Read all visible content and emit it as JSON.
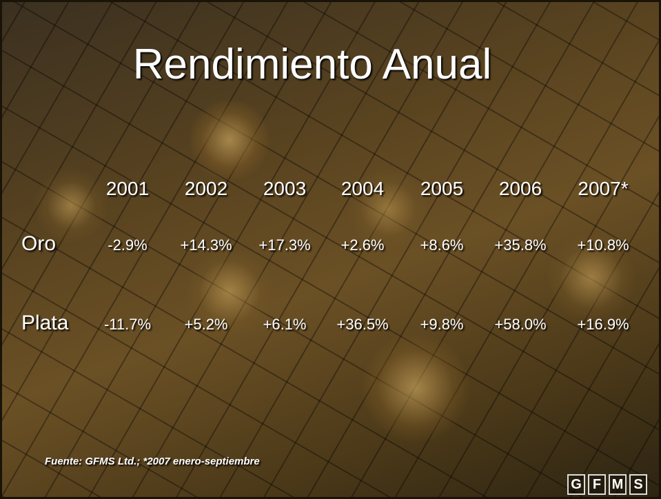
{
  "header": {
    "title": "Rendimiento Anual"
  },
  "table": {
    "columns": [
      "2001",
      "2002",
      "2003",
      "2004",
      "2005",
      "2006",
      "2007*"
    ],
    "rows": [
      {
        "label": "Oro",
        "cells": [
          "-2.9%",
          "+14.3%",
          "+17.3%",
          "+2.6%",
          "+8.6%",
          "+35.8%",
          "+10.8%"
        ]
      },
      {
        "label": "Plata",
        "cells": [
          "-11.7%",
          "+5.2%",
          "+6.1%",
          "+36.5%",
          "+9.8%",
          "+58.0%",
          "+16.9%"
        ]
      }
    ]
  },
  "footer": {
    "source": "Fuente: GFMS Ltd.; *2007 enero-septiembre",
    "logo": [
      "G",
      "F",
      "M",
      "S"
    ]
  }
}
